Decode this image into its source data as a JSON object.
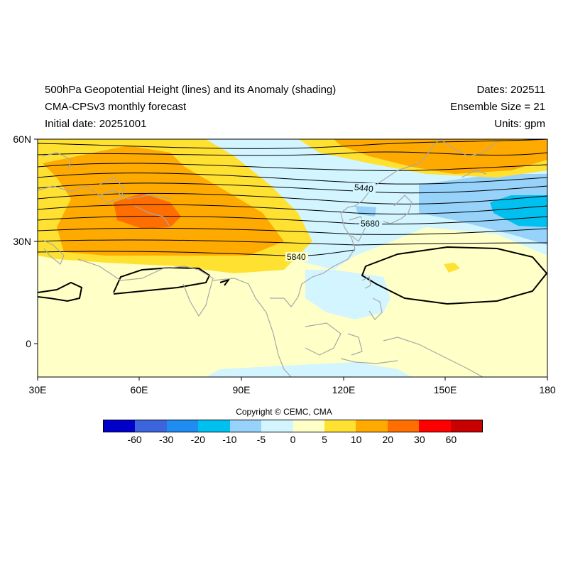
{
  "header": {
    "title_line1": "500hPa Geopotential Height (lines) and its Anomaly (shading)",
    "title_line2": "CMA-CPSv3 monthly forecast",
    "title_line3": "Initial date: 20251001",
    "dates": "Dates: 202511",
    "ensemble": "Ensemble Size = 21",
    "units": "Units: gpm"
  },
  "axes": {
    "lat_labels": [
      "60N",
      "30N",
      "0"
    ],
    "lon_labels": [
      "30E",
      "60E",
      "90E",
      "120E",
      "150E",
      "180"
    ],
    "lon_range": [
      30,
      180
    ],
    "lat_range": [
      -10,
      60
    ]
  },
  "contour_labels": [
    "5440",
    "5680",
    "5840"
  ],
  "colorbar": {
    "colors": [
      "#0000c8",
      "#3c64dc",
      "#1e8cf0",
      "#00c0f0",
      "#96d2fa",
      "#d2f5ff",
      "#ffffc8",
      "#ffe132",
      "#ffaa00",
      "#ff6e00",
      "#ff0000",
      "#c80000"
    ],
    "labels": [
      "-60",
      "-30",
      "-20",
      "-10",
      "-5",
      "0",
      "5",
      "10",
      "20",
      "30",
      "60"
    ]
  },
  "copyright": "Copyright © CEMC, CMA"
}
